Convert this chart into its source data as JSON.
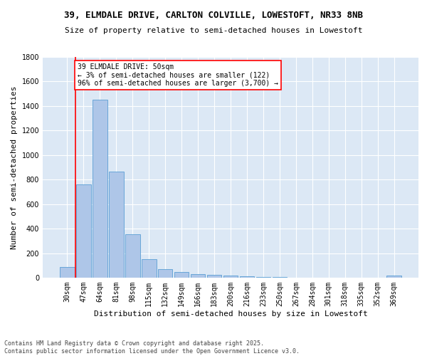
{
  "title_line1": "39, ELMDALE DRIVE, CARLTON COLVILLE, LOWESTOFT, NR33 8NB",
  "title_line2": "Size of property relative to semi-detached houses in Lowestoft",
  "xlabel": "Distribution of semi-detached houses by size in Lowestoft",
  "ylabel": "Number of semi-detached properties",
  "categories": [
    "30sqm",
    "47sqm",
    "64sqm",
    "81sqm",
    "98sqm",
    "115sqm",
    "132sqm",
    "149sqm",
    "166sqm",
    "183sqm",
    "200sqm",
    "216sqm",
    "233sqm",
    "250sqm",
    "267sqm",
    "284sqm",
    "301sqm",
    "318sqm",
    "335sqm",
    "352sqm",
    "369sqm"
  ],
  "values": [
    85,
    760,
    1450,
    865,
    355,
    150,
    70,
    48,
    28,
    22,
    15,
    10,
    8,
    6,
    0,
    0,
    0,
    0,
    0,
    0,
    15
  ],
  "bar_color": "#aec6e8",
  "bar_edge_color": "#5a9fd4",
  "red_line_index": 1,
  "annotation_text": "39 ELMDALE DRIVE: 50sqm\n← 3% of semi-detached houses are smaller (122)\n96% of semi-detached houses are larger (3,700) →",
  "annotation_box_color": "white",
  "annotation_box_edge_color": "red",
  "ylim": [
    0,
    1800
  ],
  "yticks": [
    0,
    200,
    400,
    600,
    800,
    1000,
    1200,
    1400,
    1600,
    1800
  ],
  "bg_color": "#dce8f5",
  "grid_color": "white",
  "footer_line1": "Contains HM Land Registry data © Crown copyright and database right 2025.",
  "footer_line2": "Contains public sector information licensed under the Open Government Licence v3.0.",
  "title_fontsize": 9,
  "subtitle_fontsize": 8,
  "xlabel_fontsize": 8,
  "ylabel_fontsize": 8,
  "tick_fontsize": 7,
  "footer_fontsize": 6,
  "annotation_fontsize": 7
}
